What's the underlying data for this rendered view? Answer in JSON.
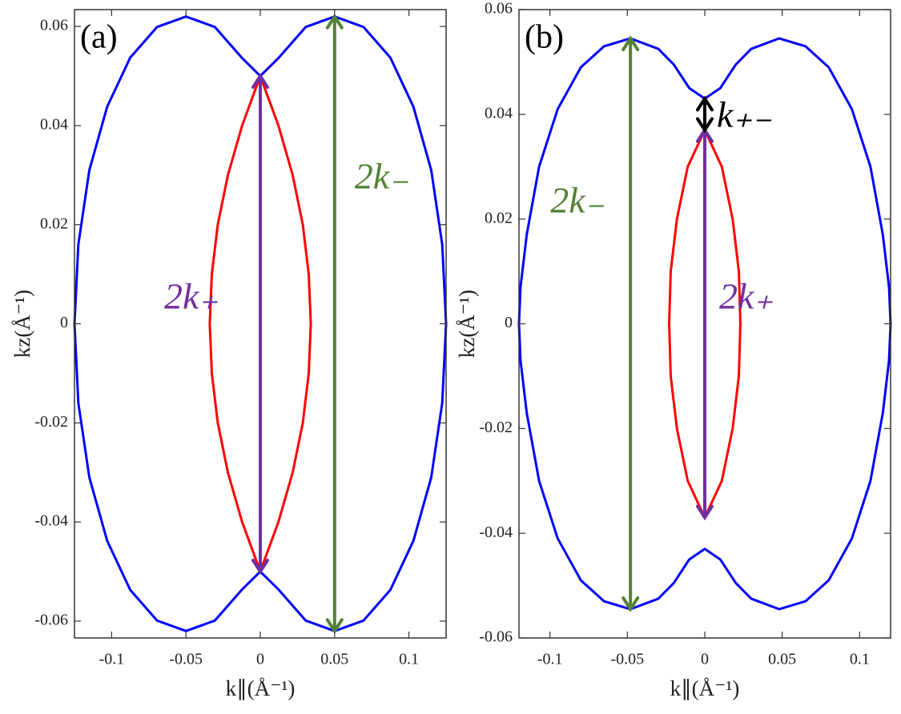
{
  "chart_data": [
    {
      "type": "line",
      "panel_label": "(a)",
      "xlabel": "k∥(Å⁻¹)",
      "ylabel": "kz(Å⁻¹)",
      "xlim": [
        -0.125,
        0.125
      ],
      "ylim": [
        -0.0634,
        0.0634
      ],
      "xticks": [
        -0.1,
        -0.05,
        0,
        0.05,
        0.1
      ],
      "yticks": [
        -0.06,
        -0.04,
        -0.02,
        0,
        0.02,
        0.04,
        0.06
      ],
      "curves": [
        {
          "color": "#0000ff",
          "x": [
            0,
            0.0125,
            0.0306,
            0.05,
            0.0694,
            0.0875,
            0.103,
            0.115,
            0.1224,
            0.125,
            0.1224,
            0.115,
            0.103,
            0.0875,
            0.0694,
            0.05,
            0.0306,
            0.0125,
            0,
            -0.0125,
            -0.0306,
            -0.05,
            -0.0694,
            -0.0875,
            -0.103,
            -0.115,
            -0.1224,
            -0.125,
            -0.1224,
            -0.115,
            -0.103,
            -0.0875,
            -0.0694,
            -0.05,
            -0.0306,
            -0.0125,
            0
          ],
          "y": [
            0.05,
            0.0537,
            0.0599,
            0.062,
            0.0599,
            0.0537,
            0.0438,
            0.031,
            0.016,
            0,
            -0.016,
            -0.031,
            -0.0438,
            -0.0537,
            -0.0599,
            -0.062,
            -0.0599,
            -0.0537,
            -0.05,
            -0.0537,
            -0.0599,
            -0.062,
            -0.0599,
            -0.0537,
            -0.0438,
            -0.031,
            -0.016,
            0,
            0.016,
            0.031,
            0.0438,
            0.0537,
            0.0599,
            0.062,
            0.0599,
            0.0537,
            0.05
          ]
        },
        {
          "color": "#ff0000",
          "x": [
            0,
            0.0122,
            0.0218,
            0.0286,
            0.0326,
            0.034,
            0.0326,
            0.0286,
            0.0218,
            0.0122,
            0,
            -0.0122,
            -0.0218,
            -0.0286,
            -0.0326,
            -0.034,
            -0.0326,
            -0.0286,
            -0.0218,
            -0.0122,
            0
          ],
          "y": [
            0.05,
            0.04,
            0.03,
            0.02,
            0.01,
            0,
            -0.01,
            -0.02,
            -0.03,
            -0.04,
            -0.05,
            -0.04,
            -0.03,
            -0.02,
            -0.01,
            0,
            0.01,
            0.02,
            0.03,
            0.04,
            0.05
          ]
        }
      ],
      "annotations": [
        {
          "label": "2k₊",
          "color": "#7030a0",
          "x": 0,
          "y1": 0.05,
          "y2": -0.05
        },
        {
          "label": "2k₋",
          "color": "#548235",
          "x": 0.05,
          "y1": 0.062,
          "y2": -0.062
        }
      ]
    },
    {
      "type": "line",
      "panel_label": "(b)",
      "xlabel": "k∥(Å⁻¹)",
      "ylabel": "kz(Å⁻¹)",
      "xlim": [
        -0.12,
        0.12
      ],
      "ylim": [
        -0.06,
        0.06
      ],
      "xticks": [
        -0.1,
        -0.05,
        0,
        0.05,
        0.1
      ],
      "yticks": [
        -0.06,
        -0.04,
        -0.02,
        0,
        0.02,
        0.04,
        0.06
      ],
      "curves": [
        {
          "color": "#0000ff",
          "x": [
            0,
            0.01,
            0.02,
            0.03,
            0.048,
            0.065,
            0.08,
            0.095,
            0.107,
            0.115,
            0.119,
            0.12,
            0.119,
            0.115,
            0.107,
            0.095,
            0.08,
            0.065,
            0.048,
            0.03,
            0.02,
            0.01,
            0,
            -0.01,
            -0.02,
            -0.03,
            -0.048,
            -0.065,
            -0.08,
            -0.095,
            -0.107,
            -0.115,
            -0.119,
            -0.12,
            -0.119,
            -0.115,
            -0.107,
            -0.095,
            -0.08,
            -0.065,
            -0.048,
            -0.03,
            -0.02,
            -0.01,
            0
          ],
          "y": [
            0.043,
            0.045,
            0.0495,
            0.0525,
            0.0545,
            0.053,
            0.049,
            0.041,
            0.03,
            0.017,
            0.007,
            0,
            -0.007,
            -0.017,
            -0.03,
            -0.041,
            -0.049,
            -0.053,
            -0.0545,
            -0.0525,
            -0.0495,
            -0.045,
            -0.043,
            -0.045,
            -0.0495,
            -0.0525,
            -0.0545,
            -0.053,
            -0.049,
            -0.041,
            -0.03,
            -0.017,
            -0.007,
            0,
            0.007,
            0.017,
            0.03,
            0.041,
            0.049,
            0.053,
            0.0545,
            0.0525,
            0.0495,
            0.045,
            0.043
          ]
        },
        {
          "color": "#ff0000",
          "x": [
            0,
            0.011,
            0.018,
            0.022,
            0.023,
            0.022,
            0.018,
            0.011,
            0,
            -0.011,
            -0.018,
            -0.022,
            -0.023,
            -0.022,
            -0.018,
            -0.011,
            0
          ],
          "y": [
            0.037,
            0.03,
            0.02,
            0.01,
            0,
            -0.01,
            -0.02,
            -0.03,
            -0.037,
            -0.03,
            -0.02,
            -0.01,
            0,
            0.01,
            0.02,
            0.03,
            0.037
          ]
        }
      ],
      "annotations": [
        {
          "label": "2k₋",
          "color": "#548235",
          "x": -0.048,
          "y1": 0.0545,
          "y2": -0.0545
        },
        {
          "label": "2k₊",
          "color": "#7030a0",
          "x": 0,
          "y1": 0.037,
          "y2": -0.037
        },
        {
          "label": "k₊₋",
          "color": "#000000",
          "x": 0,
          "y1": 0.043,
          "y2": 0.037
        }
      ]
    }
  ]
}
